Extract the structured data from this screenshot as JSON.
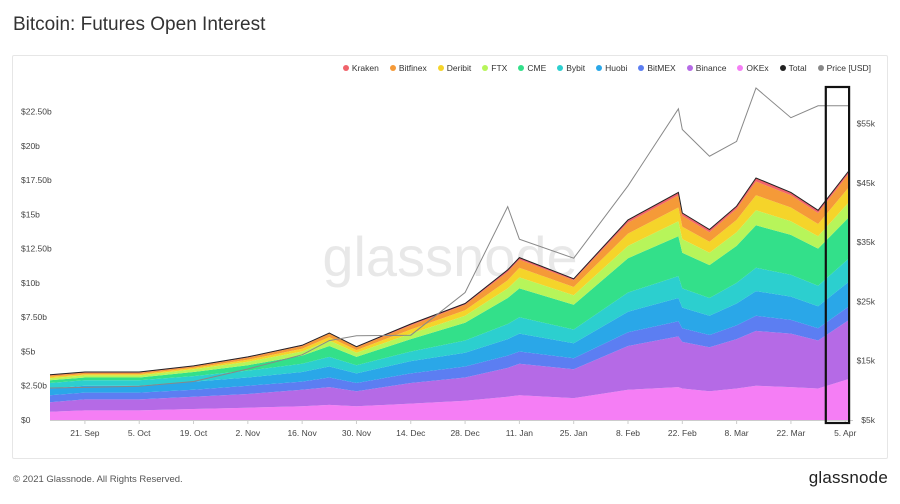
{
  "header": {
    "title": "Bitcoin: Futures Open Interest"
  },
  "footer": {
    "copyright": "© 2021 Glassnode. All Rights Reserved.",
    "logo": "glassnode"
  },
  "watermark": "glassnode",
  "chart_data": {
    "type": "area",
    "stacked": true,
    "x_tick_labels": [
      "21. Sep",
      "5. Oct",
      "19. Oct",
      "2. Nov",
      "16. Nov",
      "30. Nov",
      "14. Dec",
      "28. Dec",
      "11. Jan",
      "25. Jan",
      "8. Feb",
      "22. Feb",
      "8. Mar",
      "22. Mar",
      "5. Apr"
    ],
    "y_left_ticks": [
      "$0",
      "$2.50b",
      "$5b",
      "$7.50b",
      "$10b",
      "$12.50b",
      "$15b",
      "$17.50b",
      "$20b",
      "$22.50b"
    ],
    "y_left_range": [
      0,
      24
    ],
    "y_right_ticks": [
      "$5k",
      "$15k",
      "$25k",
      "$35k",
      "$45k",
      "$55k"
    ],
    "y_right_range": [
      5000,
      60500
    ],
    "x_range": [
      "2020-09-12",
      "2021-04-07"
    ],
    "highlight_range": [
      "2021-03-31",
      "2021-04-06"
    ],
    "x": [
      "2020-09-12",
      "2020-09-21",
      "2020-10-05",
      "2020-10-19",
      "2020-11-02",
      "2020-11-16",
      "2020-11-23",
      "2020-11-30",
      "2020-12-14",
      "2020-12-28",
      "2021-01-08",
      "2021-01-11",
      "2021-01-25",
      "2021-02-08",
      "2021-02-21",
      "2021-02-22",
      "2021-03-01",
      "2021-03-08",
      "2021-03-13",
      "2021-03-22",
      "2021-03-29",
      "2021-04-06"
    ],
    "series": [
      {
        "name": "OKEx",
        "color": "#f57ef5",
        "values": [
          0.6,
          0.7,
          0.7,
          0.8,
          0.9,
          1.0,
          1.1,
          1.0,
          1.2,
          1.4,
          1.7,
          1.8,
          1.6,
          2.2,
          2.4,
          2.3,
          2.1,
          2.3,
          2.5,
          2.4,
          2.3,
          3.0
        ]
      },
      {
        "name": "Binance",
        "color": "#b56ae6",
        "values": [
          0.7,
          0.8,
          0.8,
          0.9,
          1.0,
          1.2,
          1.3,
          1.1,
          1.5,
          1.7,
          2.1,
          2.3,
          2.1,
          3.2,
          3.7,
          3.4,
          3.2,
          3.6,
          4.0,
          3.9,
          3.5,
          4.3
        ]
      },
      {
        "name": "BitMEX",
        "color": "#5c7ef2",
        "values": [
          0.5,
          0.5,
          0.5,
          0.5,
          0.6,
          0.6,
          0.7,
          0.6,
          0.7,
          0.8,
          0.9,
          0.9,
          0.8,
          1.0,
          1.1,
          1.0,
          0.9,
          1.0,
          1.1,
          1.0,
          0.9,
          1.0
        ]
      },
      {
        "name": "Huobi",
        "color": "#2aa7e8",
        "values": [
          0.5,
          0.5,
          0.5,
          0.6,
          0.6,
          0.7,
          0.8,
          0.7,
          0.9,
          1.0,
          1.2,
          1.3,
          1.1,
          1.5,
          1.7,
          1.5,
          1.4,
          1.6,
          1.8,
          1.7,
          1.6,
          1.8
        ]
      },
      {
        "name": "Bybit",
        "color": "#2ccfcf",
        "values": [
          0.4,
          0.4,
          0.4,
          0.4,
          0.5,
          0.6,
          0.7,
          0.6,
          0.7,
          0.9,
          1.1,
          1.2,
          1.0,
          1.4,
          1.6,
          1.4,
          1.3,
          1.5,
          1.7,
          1.6,
          1.5,
          1.7
        ]
      },
      {
        "name": "CME",
        "color": "#33e08a",
        "values": [
          0.2,
          0.2,
          0.2,
          0.3,
          0.4,
          0.6,
          0.8,
          0.6,
          0.9,
          1.3,
          1.9,
          2.1,
          1.8,
          2.5,
          2.9,
          2.6,
          2.4,
          2.7,
          3.1,
          2.9,
          2.7,
          3.0
        ]
      },
      {
        "name": "FTX",
        "color": "#b7f55a",
        "values": [
          0.15,
          0.15,
          0.15,
          0.2,
          0.25,
          0.3,
          0.4,
          0.3,
          0.4,
          0.5,
          0.7,
          0.8,
          0.7,
          0.9,
          1.1,
          1.0,
          0.9,
          1.0,
          1.1,
          1.0,
          0.9,
          1.1
        ]
      },
      {
        "name": "Deribit",
        "color": "#f5d42a",
        "values": [
          0.1,
          0.1,
          0.1,
          0.1,
          0.15,
          0.2,
          0.25,
          0.2,
          0.3,
          0.4,
          0.6,
          0.7,
          0.6,
          0.9,
          1.0,
          0.9,
          0.8,
          0.9,
          1.1,
          1.0,
          0.9,
          1.1
        ]
      },
      {
        "name": "Bitfinex",
        "color": "#f59a38",
        "values": [
          0.1,
          0.1,
          0.1,
          0.1,
          0.15,
          0.2,
          0.25,
          0.2,
          0.3,
          0.4,
          0.6,
          0.6,
          0.5,
          0.8,
          0.9,
          0.8,
          0.7,
          0.8,
          1.0,
          0.9,
          0.8,
          1.0
        ]
      },
      {
        "name": "Kraken",
        "color": "#f0636b",
        "values": [
          0.05,
          0.05,
          0.05,
          0.05,
          0.05,
          0.05,
          0.05,
          0.05,
          0.1,
          0.1,
          0.15,
          0.15,
          0.1,
          0.2,
          0.2,
          0.2,
          0.2,
          0.2,
          0.25,
          0.2,
          0.2,
          0.2
        ]
      }
    ],
    "total": {
      "name": "Total",
      "color": "#222222",
      "values": [
        3.3,
        3.5,
        3.5,
        3.95,
        4.6,
        5.45,
        6.35,
        5.35,
        7.0,
        8.5,
        10.95,
        11.85,
        10.3,
        14.6,
        16.6,
        15.1,
        13.9,
        15.6,
        17.65,
        16.6,
        15.3,
        18.2
      ]
    },
    "price": {
      "name": "Price [USD]",
      "color": "#888888",
      "x": [
        "2020-09-12",
        "2020-09-21",
        "2020-10-05",
        "2020-10-19",
        "2020-11-02",
        "2020-11-16",
        "2020-11-23",
        "2020-11-30",
        "2020-12-14",
        "2020-12-28",
        "2021-01-08",
        "2021-01-11",
        "2021-01-25",
        "2021-02-08",
        "2021-02-21",
        "2021-02-22",
        "2021-03-01",
        "2021-03-08",
        "2021-03-13",
        "2021-03-22",
        "2021-03-29",
        "2021-04-06"
      ],
      "values": [
        10400,
        10500,
        10700,
        11500,
        13600,
        16000,
        18400,
        19200,
        19300,
        26500,
        41000,
        35500,
        32300,
        44500,
        57500,
        54000,
        49500,
        52000,
        61000,
        56000,
        58000,
        58000
      ]
    },
    "legend": [
      "Kraken",
      "Bitfinex",
      "Deribit",
      "FTX",
      "CME",
      "Bybit",
      "Huobi",
      "BitMEX",
      "Binance",
      "OKEx",
      "Total",
      "Price [USD]"
    ],
    "legend_placement": "top-right",
    "grid": false
  }
}
